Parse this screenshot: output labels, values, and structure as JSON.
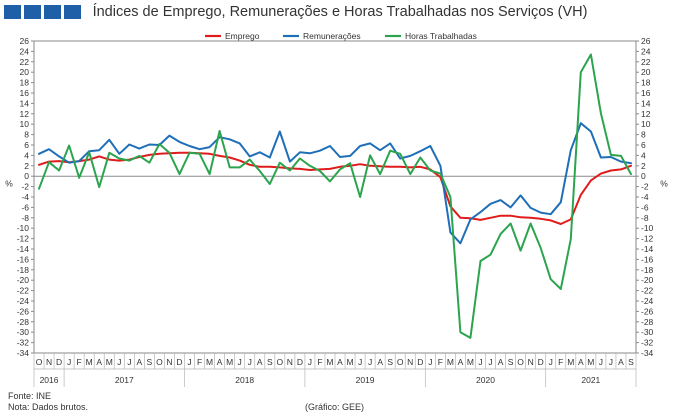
{
  "title": "Índices de Emprego, Remunerações e Horas Trabalhadas nos Serviços (VH)",
  "footer": {
    "source": "Fonte: INE",
    "note": "Nota: Dados brutos.",
    "credit": "(Gráfico: GEE)"
  },
  "chart_data": {
    "type": "line",
    "title": "Índices de Emprego, Remunerações e Horas Trabalhadas nos Serviços (VH)",
    "ylabel_left": "%",
    "ylabel_right": "%",
    "ylim": [
      -34,
      26
    ],
    "ytick_step": 2,
    "grid": false,
    "legend_position": "top",
    "month_labels": [
      "O",
      "N",
      "D",
      "J",
      "F",
      "M",
      "A",
      "M",
      "J",
      "J",
      "A",
      "S",
      "O",
      "N",
      "D",
      "J",
      "F",
      "M",
      "A",
      "M",
      "J",
      "J",
      "A",
      "S",
      "O",
      "N",
      "D",
      "J",
      "F",
      "M",
      "A",
      "M",
      "J",
      "J",
      "A",
      "S",
      "O",
      "N",
      "D",
      "J",
      "F",
      "M",
      "A",
      "M",
      "J",
      "J",
      "A",
      "S",
      "O",
      "N",
      "D",
      "J",
      "F",
      "M",
      "A",
      "M",
      "J",
      "J",
      "A",
      "S"
    ],
    "year_groups": [
      {
        "label": "2016",
        "start": 0,
        "end": 3
      },
      {
        "label": "2017",
        "start": 3,
        "end": 15
      },
      {
        "label": "2018",
        "start": 15,
        "end": 27
      },
      {
        "label": "2019",
        "start": 27,
        "end": 39
      },
      {
        "label": "2020",
        "start": 39,
        "end": 51
      },
      {
        "label": "2021",
        "start": 51,
        "end": 60
      }
    ],
    "series": [
      {
        "name": "Emprego",
        "color": "#e01b1b",
        "values": [
          2.2,
          2.8,
          2.9,
          2.7,
          2.9,
          3.2,
          3.8,
          3.2,
          3.0,
          3.2,
          3.7,
          4.1,
          4.3,
          4.4,
          4.5,
          4.5,
          4.4,
          4.3,
          3.9,
          3.6,
          3.0,
          2.2,
          1.8,
          1.8,
          1.7,
          1.5,
          1.4,
          1.2,
          1.3,
          1.4,
          1.8,
          2.0,
          2.3,
          2.0,
          1.9,
          1.8,
          1.8,
          1.7,
          1.8,
          1.3,
          -0.2,
          -5.8,
          -8.0,
          -8.1,
          -8.4,
          -8.0,
          -7.6,
          -7.6,
          -7.9,
          -8.0,
          -8.2,
          -8.5,
          -9.2,
          -8.3,
          -3.6,
          -0.8,
          0.5,
          1.1,
          1.3,
          2.0
        ]
      },
      {
        "name": "Remunerações",
        "color": "#1f6fb8",
        "values": [
          4.3,
          5.2,
          3.8,
          2.6,
          2.9,
          4.8,
          5.0,
          7.0,
          4.3,
          6.1,
          5.3,
          6.1,
          6.0,
          7.8,
          6.6,
          5.8,
          5.2,
          5.6,
          7.5,
          7.1,
          6.3,
          3.8,
          4.6,
          3.6,
          8.6,
          2.8,
          4.6,
          4.4,
          4.9,
          5.8,
          3.7,
          3.9,
          5.8,
          6.3,
          5.0,
          6.3,
          3.4,
          3.9,
          4.8,
          5.8,
          2.0,
          -10.8,
          -12.9,
          -8.3,
          -6.9,
          -5.3,
          -4.6,
          -6.0,
          -3.7,
          -6.1,
          -7.0,
          -7.3,
          -5.0,
          5.0,
          10.2,
          8.6,
          3.6,
          3.7,
          2.8,
          2.5
        ]
      },
      {
        "name": "Horas Trabalhadas",
        "color": "#2ca44e",
        "values": [
          -2.4,
          2.7,
          1.1,
          5.9,
          -0.3,
          4.6,
          -2.1,
          4.5,
          3.4,
          3.0,
          3.9,
          2.6,
          6.2,
          4.5,
          0.4,
          4.5,
          4.3,
          0.4,
          8.7,
          1.7,
          1.7,
          3.2,
          1.0,
          -1.5,
          2.6,
          1.1,
          3.4,
          2.0,
          1.0,
          -1.0,
          1.3,
          2.5,
          -4.0,
          4.0,
          0.4,
          4.9,
          4.3,
          0.4,
          3.6,
          1.1,
          0.5,
          -4.0,
          -30.0,
          -31.1,
          -16.3,
          -15.1,
          -11.1,
          -9.1,
          -14.3,
          -9.1,
          -13.8,
          -19.8,
          -21.7,
          -12.1,
          20.0,
          23.4,
          12.1,
          4.1,
          3.9,
          0.4
        ]
      }
    ]
  }
}
